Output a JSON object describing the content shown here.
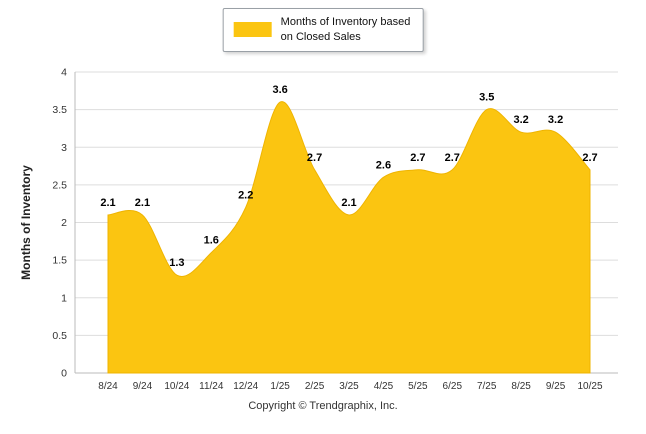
{
  "chart_data": {
    "type": "area",
    "categories": [
      "8/24",
      "9/24",
      "10/24",
      "11/24",
      "12/24",
      "1/25",
      "2/25",
      "3/25",
      "4/25",
      "5/25",
      "6/25",
      "7/25",
      "8/25",
      "9/25",
      "10/25"
    ],
    "values": [
      2.1,
      2.1,
      1.3,
      1.6,
      2.2,
      3.6,
      2.7,
      2.1,
      2.6,
      2.7,
      2.7,
      3.5,
      3.2,
      3.2,
      2.7
    ],
    "series_name": "Months of Inventory based on Closed Sales",
    "title": "",
    "xlabel": "",
    "ylabel": "Months of Inventory",
    "ylim": [
      0,
      4
    ],
    "yticks": [
      0,
      0.5,
      1,
      1.5,
      2,
      2.5,
      3,
      3.5,
      4
    ],
    "ytick_labels": [
      "0",
      "0.5",
      "1",
      "1.5",
      "2",
      "2.5",
      "3",
      "3.5",
      "4"
    ],
    "grid": true,
    "legend_position": "top-center",
    "data_labels": true
  },
  "legend": {
    "line1": "Months of Inventory based",
    "line2": "on Closed Sales"
  },
  "footer": {
    "copyright": "Copyright © Trendgraphix, Inc."
  },
  "colors": {
    "area": "#FBC511",
    "area_edge": "#EFB400",
    "grid": "#DDDDDD",
    "axis": "#BBBBBB",
    "tick_text": "#333333",
    "data_label": "#000000",
    "axis_title": "#222222"
  }
}
